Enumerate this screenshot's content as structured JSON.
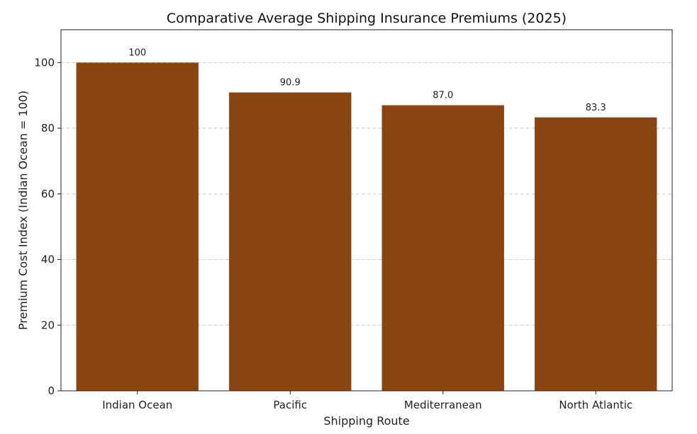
{
  "chart_data": {
    "type": "bar",
    "title": "Comparative Average Shipping Insurance Premiums (2025)",
    "xlabel": "Shipping Route",
    "ylabel": "Premium Cost Index (Indian Ocean = 100)",
    "categories": [
      "Indian Ocean",
      "Pacific",
      "Mediterranean",
      "North Atlantic"
    ],
    "values": [
      100,
      90.9,
      87.0,
      83.3
    ],
    "data_labels": [
      "100",
      "90.9",
      "87.0",
      "83.3"
    ],
    "ylim": [
      0,
      110
    ],
    "yticks": [
      0,
      20,
      40,
      60,
      80,
      100
    ],
    "grid": "y dashed",
    "bar_color": "#8B4513"
  }
}
